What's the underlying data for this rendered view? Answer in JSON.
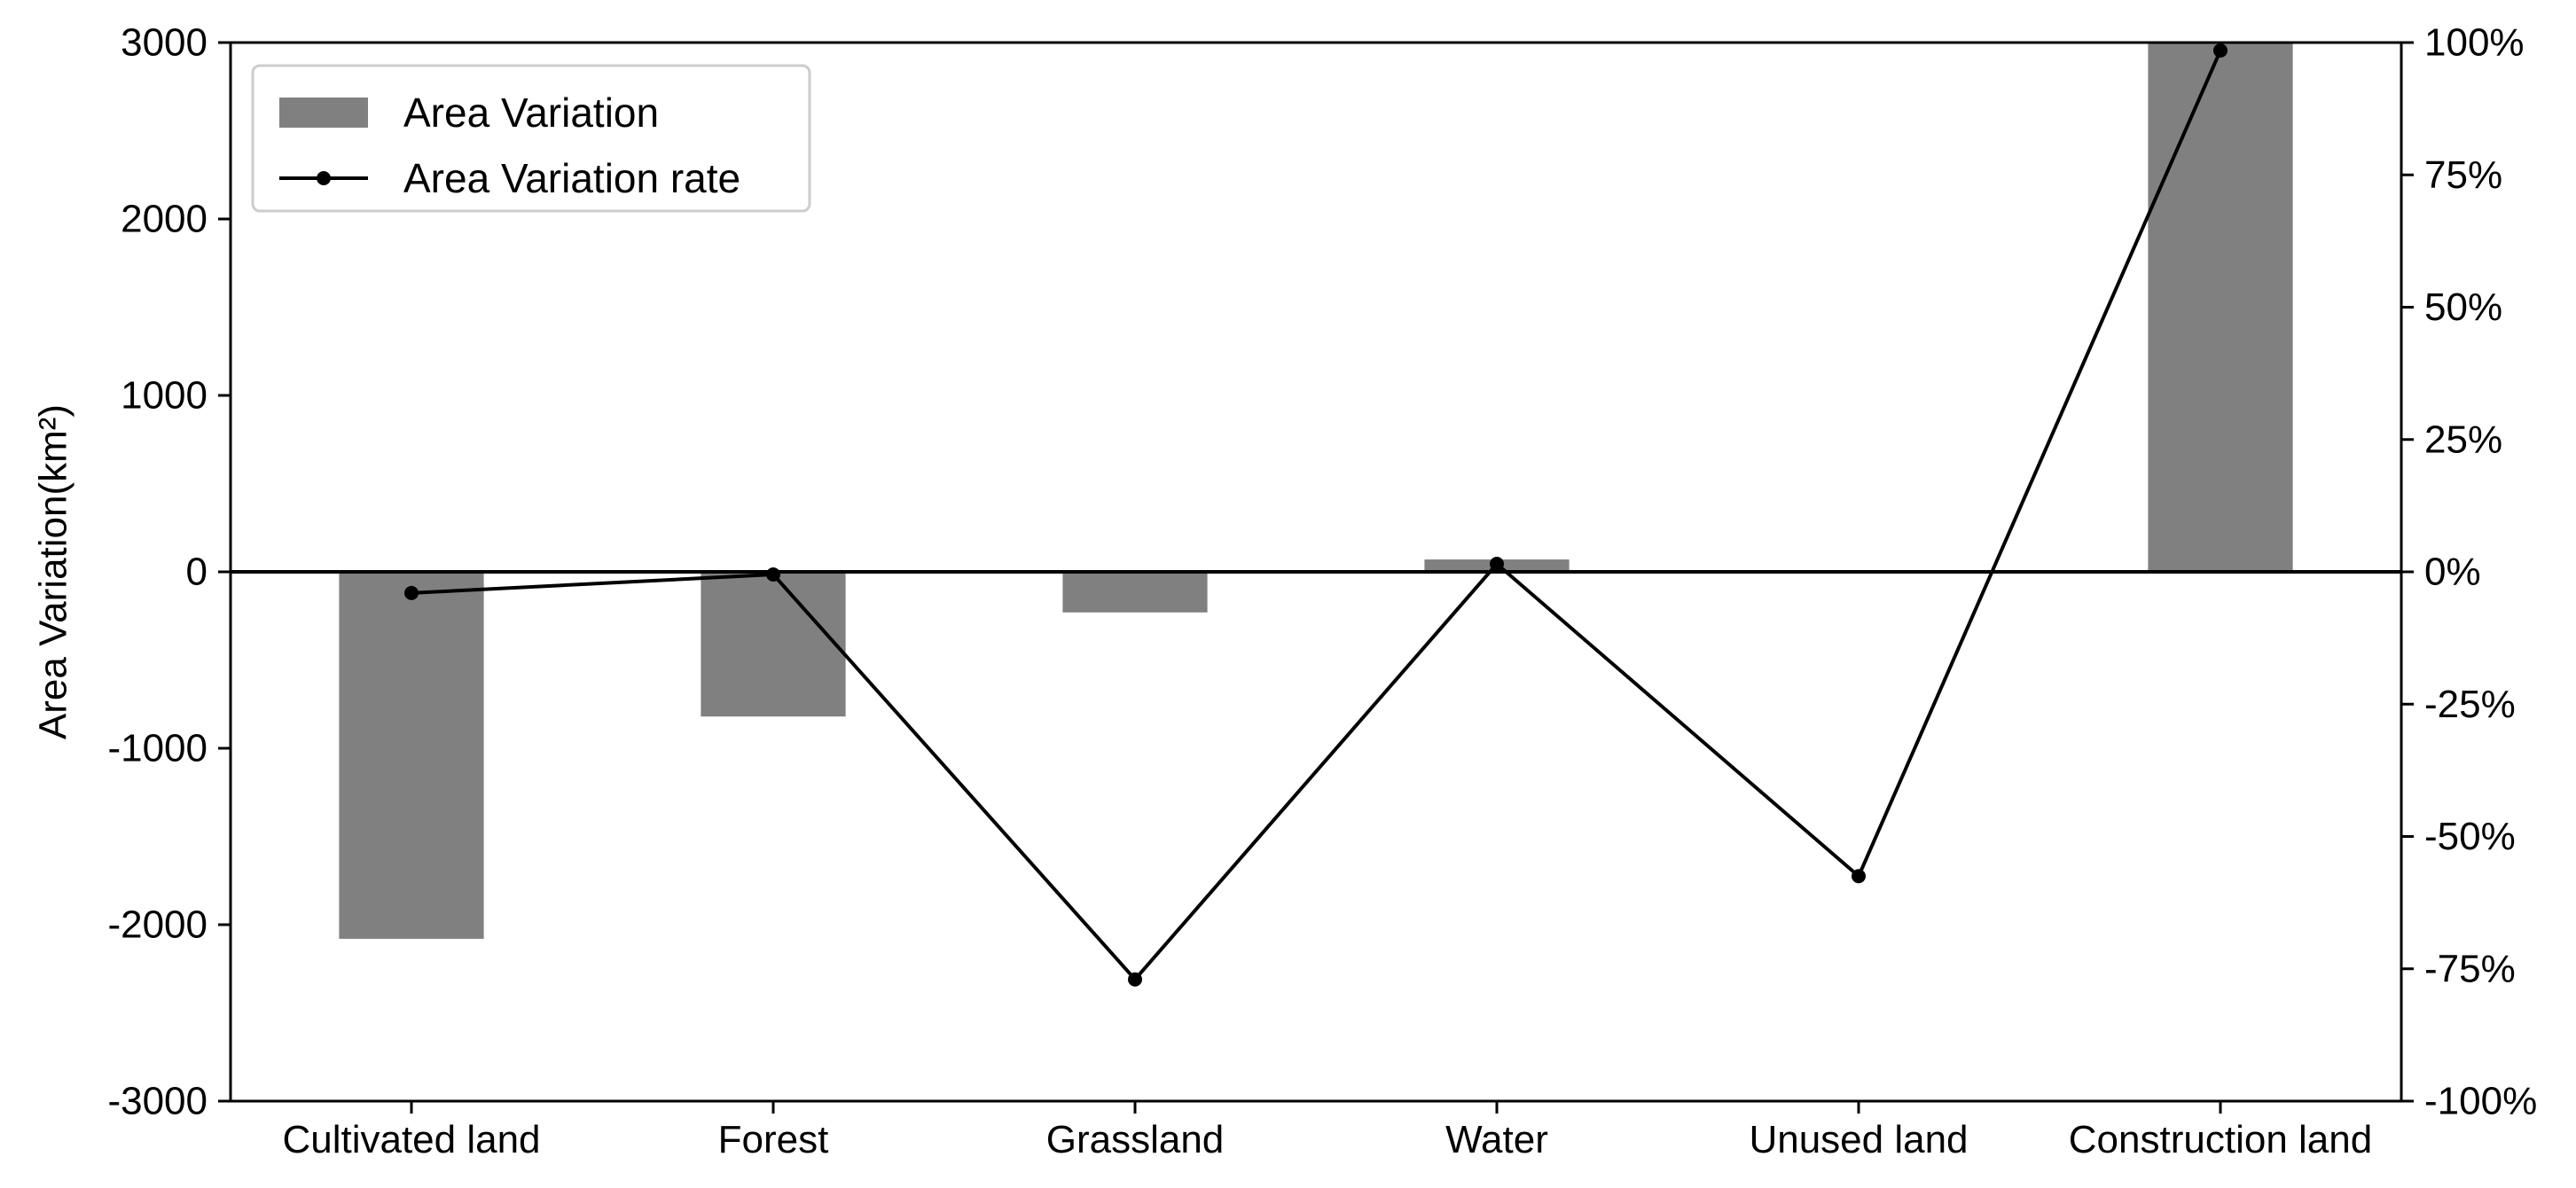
{
  "chart_data": {
    "type": "bar",
    "title": "",
    "categories": [
      "Cultivated land",
      "Forest",
      "Grassland",
      "Water",
      "Unused land",
      "Construction land"
    ],
    "series": [
      {
        "name": "Area Variation",
        "type": "bar",
        "axis": "left",
        "values": [
          -2080,
          -820,
          -230,
          70,
          0,
          3000
        ]
      },
      {
        "name": "Area Variation rate",
        "type": "line",
        "axis": "right",
        "values": [
          -0.04,
          -0.005,
          -0.77,
          0.015,
          -0.575,
          0.985
        ]
      }
    ],
    "xlabel": "",
    "ylabel": "Area Variation(km²)",
    "ylim": [
      -3000,
      3000
    ],
    "yticks": [
      "-3000",
      "-2000",
      "-1000",
      "0",
      "1000",
      "2000",
      "3000"
    ],
    "y2lim": [
      -1,
      1
    ],
    "y2ticks": [
      "-100%",
      "-75%",
      "-50%",
      "-25%",
      "0%",
      "25%",
      "50%",
      "75%",
      "100%"
    ],
    "legend": {
      "position": "top-left",
      "items": [
        "Area Variation",
        "Area Variation rate"
      ]
    },
    "colors": {
      "bar": "#808080",
      "line": "#000000",
      "zero_line": "#000000"
    },
    "grid": false
  }
}
